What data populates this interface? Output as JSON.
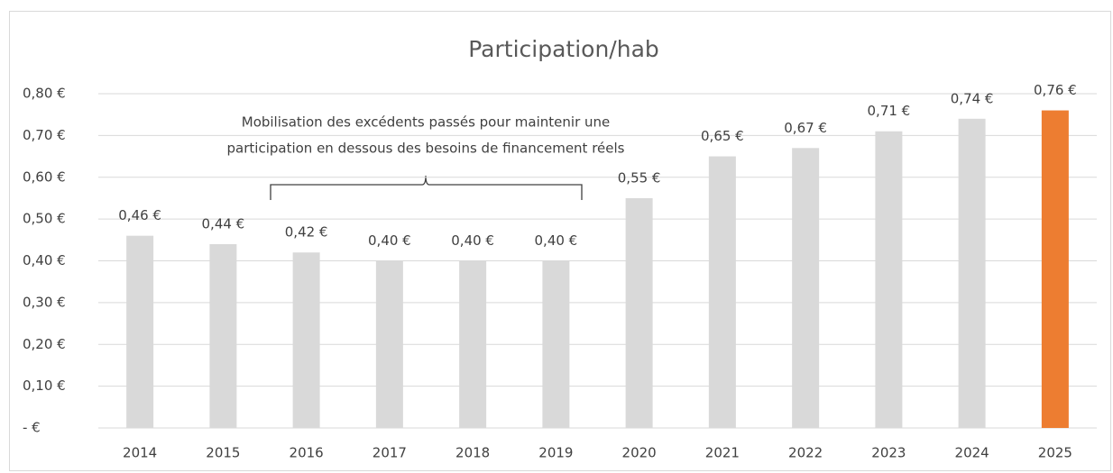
{
  "chart_data": {
    "type": "bar",
    "title": "Participation/hab",
    "categories": [
      "2014",
      "2015",
      "2016",
      "2017",
      "2018",
      "2019",
      "2020",
      "2021",
      "2022",
      "2023",
      "2024",
      "2025"
    ],
    "values": [
      0.46,
      0.44,
      0.42,
      0.4,
      0.4,
      0.4,
      0.55,
      0.65,
      0.67,
      0.71,
      0.74,
      0.76
    ],
    "value_labels": [
      "0,46 €",
      "0,44 €",
      "0,42 €",
      "0,40 €",
      "0,40 €",
      "0,40 €",
      "0,55 €",
      "0,65 €",
      "0,67 €",
      "0,71 €",
      "0,74 €",
      "0,76 €"
    ],
    "colors": [
      "#d9d9d9",
      "#d9d9d9",
      "#d9d9d9",
      "#d9d9d9",
      "#d9d9d9",
      "#d9d9d9",
      "#d9d9d9",
      "#d9d9d9",
      "#d9d9d9",
      "#d9d9d9",
      "#d9d9d9",
      "#ed7d31"
    ],
    "ylim": [
      0,
      0.8
    ],
    "yticks": [
      {
        "value": 0,
        "label": "-  €"
      },
      {
        "value": 0.1,
        "label": "0,10 €"
      },
      {
        "value": 0.2,
        "label": "0,20 €"
      },
      {
        "value": 0.3,
        "label": "0,30 €"
      },
      {
        "value": 0.4,
        "label": "0,40 €"
      },
      {
        "value": 0.5,
        "label": "0,50 €"
      },
      {
        "value": 0.6,
        "label": "0,60 €"
      },
      {
        "value": 0.7,
        "label": "0,70 €"
      },
      {
        "value": 0.8,
        "label": "0,80 €"
      }
    ],
    "grid": true,
    "annotation": [
      "Mobilisation des excédents passés pour maintenir une",
      "participation en dessous des besoins de financement réels"
    ]
  }
}
